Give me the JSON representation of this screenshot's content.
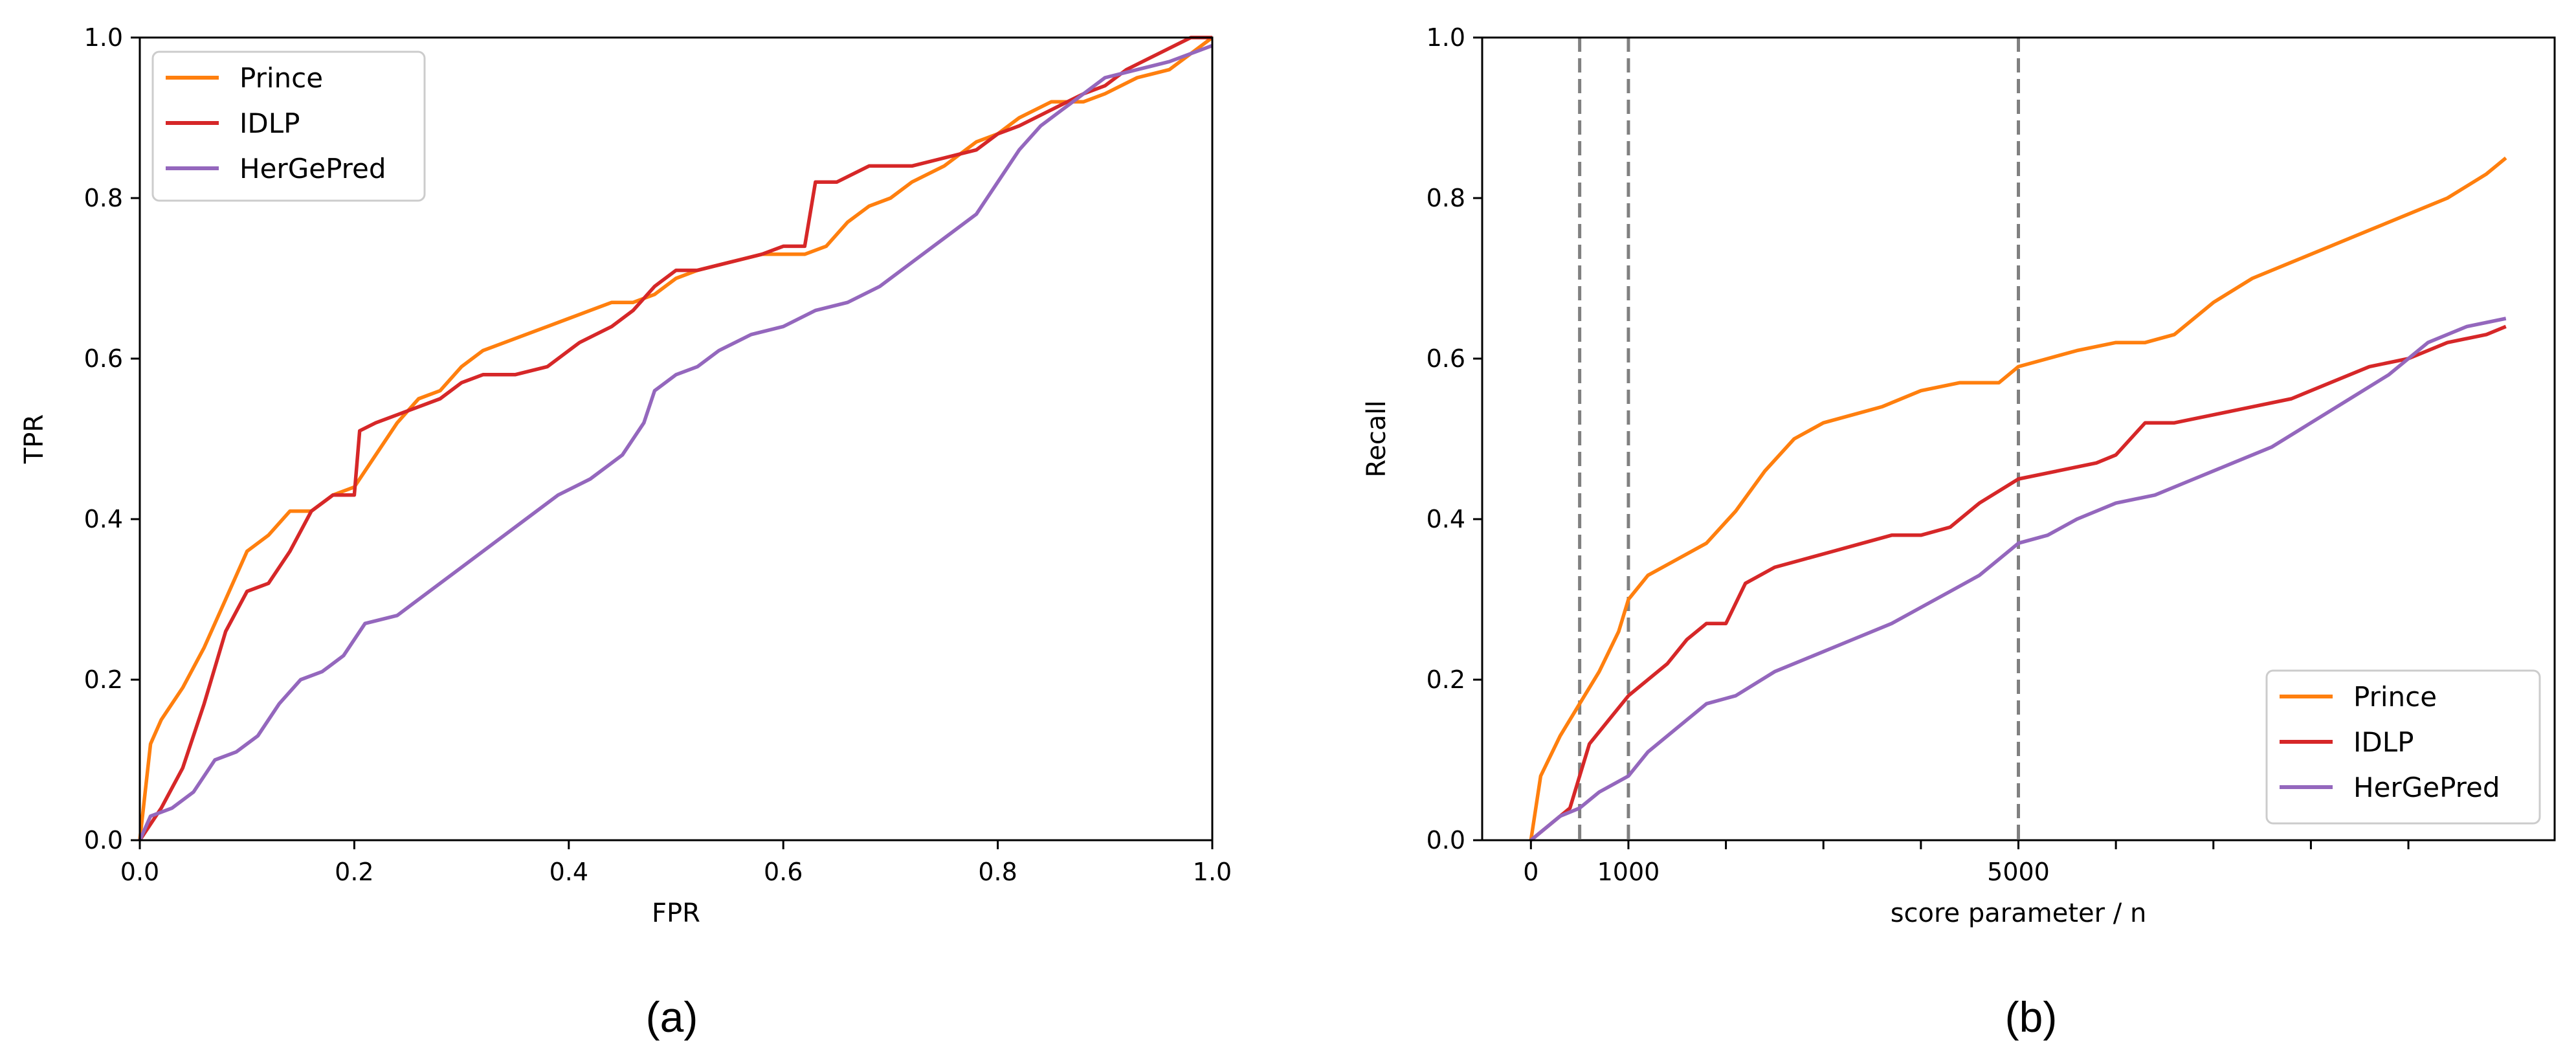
{
  "colors": {
    "Prince": "#ff7f0e",
    "IDLP": "#d62728",
    "HerGePred": "#9467bd",
    "reference": "#808080"
  },
  "chart_data": [
    {
      "type": "line",
      "caption": "(a)",
      "xlabel": "FPR",
      "ylabel": "TPR",
      "xlim": [
        0,
        1
      ],
      "ylim": [
        0,
        1
      ],
      "xticks": [
        0.0,
        0.2,
        0.4,
        0.6,
        0.8,
        1.0
      ],
      "xtick_labels": [
        "0.0",
        "0.2",
        "0.4",
        "0.6",
        "0.8",
        "1.0"
      ],
      "yticks": [
        0.0,
        0.2,
        0.4,
        0.6,
        0.8,
        1.0
      ],
      "ytick_labels": [
        "0.0",
        "0.2",
        "0.4",
        "0.6",
        "0.8",
        "1.0"
      ],
      "grid": false,
      "legend": "top-left",
      "series": [
        {
          "name": "Prince",
          "color": "#ff7f0e",
          "x": [
            0,
            0.01,
            0.02,
            0.04,
            0.06,
            0.08,
            0.1,
            0.12,
            0.14,
            0.16,
            0.18,
            0.2,
            0.22,
            0.24,
            0.26,
            0.28,
            0.3,
            0.32,
            0.34,
            0.36,
            0.38,
            0.4,
            0.42,
            0.44,
            0.46,
            0.48,
            0.5,
            0.52,
            0.55,
            0.58,
            0.6,
            0.62,
            0.64,
            0.66,
            0.68,
            0.7,
            0.72,
            0.75,
            0.78,
            0.8,
            0.82,
            0.85,
            0.88,
            0.9,
            0.93,
            0.96,
            0.98,
            1.0
          ],
          "y": [
            0,
            0.12,
            0.15,
            0.19,
            0.24,
            0.3,
            0.36,
            0.38,
            0.41,
            0.41,
            0.43,
            0.44,
            0.48,
            0.52,
            0.55,
            0.56,
            0.59,
            0.61,
            0.62,
            0.63,
            0.64,
            0.65,
            0.66,
            0.67,
            0.67,
            0.68,
            0.7,
            0.71,
            0.72,
            0.73,
            0.73,
            0.73,
            0.74,
            0.77,
            0.79,
            0.8,
            0.82,
            0.84,
            0.87,
            0.88,
            0.9,
            0.92,
            0.92,
            0.93,
            0.95,
            0.96,
            0.98,
            1.0
          ]
        },
        {
          "name": "IDLP",
          "color": "#d62728",
          "x": [
            0,
            0.02,
            0.04,
            0.06,
            0.08,
            0.1,
            0.12,
            0.14,
            0.16,
            0.18,
            0.2,
            0.205,
            0.22,
            0.24,
            0.26,
            0.28,
            0.3,
            0.32,
            0.35,
            0.38,
            0.41,
            0.44,
            0.46,
            0.48,
            0.5,
            0.52,
            0.55,
            0.58,
            0.6,
            0.62,
            0.63,
            0.65,
            0.68,
            0.7,
            0.72,
            0.75,
            0.78,
            0.8,
            0.82,
            0.85,
            0.88,
            0.9,
            0.92,
            0.95,
            0.98,
            1.0
          ],
          "y": [
            0,
            0.04,
            0.09,
            0.17,
            0.26,
            0.31,
            0.32,
            0.36,
            0.41,
            0.43,
            0.43,
            0.51,
            0.52,
            0.53,
            0.54,
            0.55,
            0.57,
            0.58,
            0.58,
            0.59,
            0.62,
            0.64,
            0.66,
            0.69,
            0.71,
            0.71,
            0.72,
            0.73,
            0.74,
            0.74,
            0.82,
            0.82,
            0.84,
            0.84,
            0.84,
            0.85,
            0.86,
            0.88,
            0.89,
            0.91,
            0.93,
            0.94,
            0.96,
            0.98,
            1.0,
            1.0
          ]
        },
        {
          "name": "HerGePred",
          "color": "#9467bd",
          "x": [
            0,
            0.01,
            0.03,
            0.05,
            0.07,
            0.09,
            0.11,
            0.13,
            0.15,
            0.17,
            0.19,
            0.21,
            0.24,
            0.27,
            0.3,
            0.33,
            0.36,
            0.39,
            0.42,
            0.45,
            0.47,
            0.48,
            0.5,
            0.52,
            0.54,
            0.57,
            0.6,
            0.63,
            0.66,
            0.69,
            0.72,
            0.75,
            0.78,
            0.8,
            0.82,
            0.84,
            0.86,
            0.88,
            0.9,
            0.93,
            0.96,
            0.98,
            1.0
          ],
          "y": [
            0,
            0.03,
            0.04,
            0.06,
            0.1,
            0.11,
            0.13,
            0.17,
            0.2,
            0.21,
            0.23,
            0.27,
            0.28,
            0.31,
            0.34,
            0.37,
            0.4,
            0.43,
            0.45,
            0.48,
            0.52,
            0.56,
            0.58,
            0.59,
            0.61,
            0.63,
            0.64,
            0.66,
            0.67,
            0.69,
            0.72,
            0.75,
            0.78,
            0.82,
            0.86,
            0.89,
            0.91,
            0.93,
            0.95,
            0.96,
            0.97,
            0.98,
            0.99
          ]
        }
      ]
    },
    {
      "type": "line",
      "caption": "(b)",
      "xlabel": "score parameter / n",
      "ylabel": "Recall",
      "xlim": [
        -500,
        10500
      ],
      "ylim": [
        0,
        1
      ],
      "xticks": [
        0,
        1000,
        2000,
        3000,
        4000,
        5000,
        6000,
        7000,
        8000,
        9000
      ],
      "xtick_labels": [
        "0",
        "1000",
        "",
        "",
        "",
        "5000",
        "",
        "",
        "",
        ""
      ],
      "yticks": [
        0.0,
        0.2,
        0.4,
        0.6,
        0.8,
        1.0
      ],
      "ytick_labels": [
        "0.0",
        "0.2",
        "0.4",
        "0.6",
        "0.8",
        "1.0"
      ],
      "vlines": [
        500,
        1000,
        5000
      ],
      "grid": false,
      "legend": "bottom-right",
      "series": [
        {
          "name": "Prince",
          "color": "#ff7f0e",
          "x": [
            0,
            100,
            300,
            500,
            700,
            900,
            1000,
            1200,
            1500,
            1800,
            2100,
            2400,
            2700,
            3000,
            3300,
            3600,
            4000,
            4400,
            4800,
            5000,
            5300,
            5600,
            6000,
            6300,
            6600,
            7000,
            7400,
            7800,
            8200,
            8600,
            9000,
            9400,
            9800,
            10000
          ],
          "y": [
            0,
            0.08,
            0.13,
            0.17,
            0.21,
            0.26,
            0.3,
            0.33,
            0.35,
            0.37,
            0.41,
            0.46,
            0.5,
            0.52,
            0.53,
            0.54,
            0.56,
            0.57,
            0.57,
            0.59,
            0.6,
            0.61,
            0.62,
            0.62,
            0.63,
            0.67,
            0.7,
            0.72,
            0.74,
            0.76,
            0.78,
            0.8,
            0.83,
            0.85
          ]
        },
        {
          "name": "IDLP",
          "color": "#d62728",
          "x": [
            0,
            200,
            400,
            500,
            600,
            800,
            1000,
            1200,
            1400,
            1600,
            1800,
            2000,
            2200,
            2500,
            2800,
            3100,
            3400,
            3700,
            4000,
            4300,
            4600,
            5000,
            5400,
            5800,
            6000,
            6300,
            6600,
            7000,
            7400,
            7800,
            8200,
            8600,
            9000,
            9400,
            9800,
            10000
          ],
          "y": [
            0,
            0.02,
            0.04,
            0.08,
            0.12,
            0.15,
            0.18,
            0.2,
            0.22,
            0.25,
            0.27,
            0.27,
            0.32,
            0.34,
            0.35,
            0.36,
            0.37,
            0.38,
            0.38,
            0.39,
            0.42,
            0.45,
            0.46,
            0.47,
            0.48,
            0.52,
            0.52,
            0.53,
            0.54,
            0.55,
            0.57,
            0.59,
            0.6,
            0.62,
            0.63,
            0.64
          ]
        },
        {
          "name": "HerGePred",
          "color": "#9467bd",
          "x": [
            0,
            300,
            500,
            700,
            1000,
            1200,
            1500,
            1800,
            2100,
            2500,
            2900,
            3300,
            3700,
            4000,
            4300,
            4600,
            4800,
            5000,
            5300,
            5600,
            6000,
            6400,
            6800,
            7200,
            7600,
            8000,
            8400,
            8800,
            9000,
            9200,
            9600,
            10000
          ],
          "y": [
            0,
            0.03,
            0.04,
            0.06,
            0.08,
            0.11,
            0.14,
            0.17,
            0.18,
            0.21,
            0.23,
            0.25,
            0.27,
            0.29,
            0.31,
            0.33,
            0.35,
            0.37,
            0.38,
            0.4,
            0.42,
            0.43,
            0.45,
            0.47,
            0.49,
            0.52,
            0.55,
            0.58,
            0.6,
            0.62,
            0.64,
            0.65
          ]
        }
      ]
    }
  ]
}
